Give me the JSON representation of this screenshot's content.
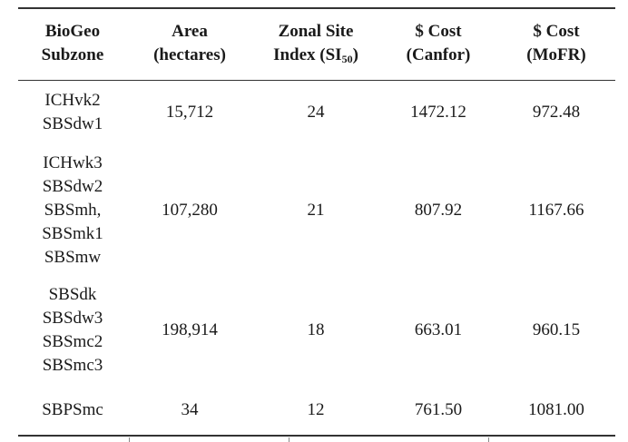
{
  "table": {
    "headers": [
      {
        "lines": [
          "BioGeo",
          "Subzone"
        ]
      },
      {
        "lines": [
          "Area",
          "(hectares)"
        ]
      },
      {
        "line1": "Zonal Site",
        "line2_prefix": "Index (SI",
        "line2_sub": "50",
        "line2_suffix": ")"
      },
      {
        "lines": [
          "$ Cost",
          "(Canfor)"
        ]
      },
      {
        "lines": [
          "$ Cost",
          "(MoFR)"
        ]
      }
    ],
    "rows": [
      {
        "subzones": [
          "ICHvk2",
          "SBSdw1"
        ],
        "area": "15,712",
        "si": "24",
        "cost_canfor": "1472.12",
        "cost_mofr": "972.48"
      },
      {
        "subzones": [
          "ICHwk3",
          "SBSdw2",
          "SBSmh,",
          "SBSmk1",
          "SBSmw"
        ],
        "area": "107,280",
        "si": "21",
        "cost_canfor": "807.92",
        "cost_mofr": "1167.66"
      },
      {
        "subzones": [
          "SBSdk",
          "SBSdw3",
          "SBSmc2",
          "SBSmc3"
        ],
        "area": "198,914",
        "si": "18",
        "cost_canfor": "663.01",
        "cost_mofr": "960.15"
      },
      {
        "subzones": [
          "SBPSmc"
        ],
        "area": "34",
        "si": "12",
        "cost_canfor": "761.50",
        "cost_mofr": "1081.00"
      }
    ]
  }
}
